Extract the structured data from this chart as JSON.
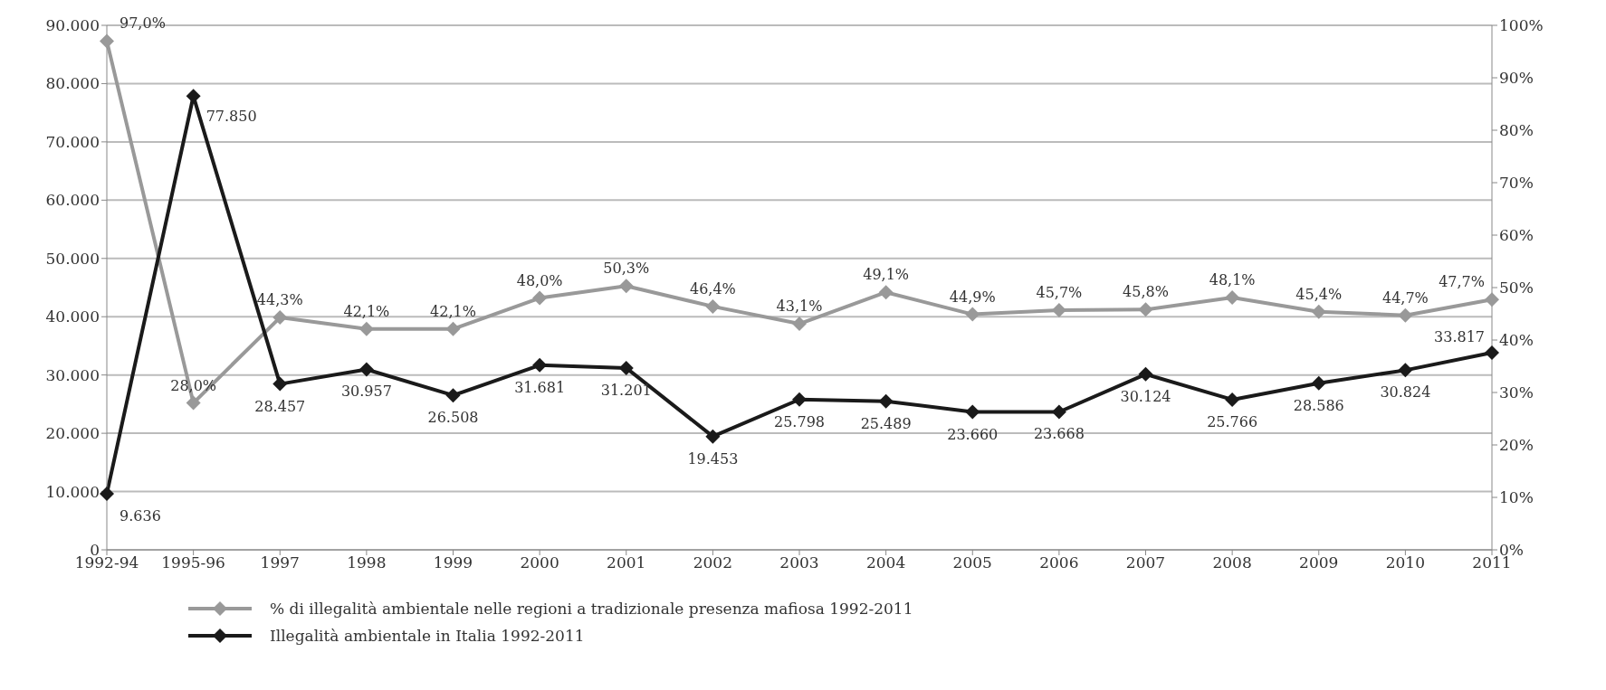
{
  "chart_data": {
    "type": "line",
    "categories": [
      "1992-94",
      "1995-96",
      "1997",
      "1998",
      "1999",
      "2000",
      "2001",
      "2002",
      "2003",
      "2004",
      "2005",
      "2006",
      "2007",
      "2008",
      "2009",
      "2010",
      "2011"
    ],
    "series": [
      {
        "name": "% di illegalità ambientale nelle regioni a tradizionale presenza mafiosa 1992-2011",
        "color": "#999999",
        "axis": "y2",
        "values": [
          97.0,
          28.0,
          44.3,
          42.1,
          42.1,
          48.0,
          50.3,
          46.4,
          43.1,
          49.1,
          44.9,
          45.7,
          45.8,
          48.1,
          45.4,
          44.7,
          47.7
        ],
        "value_labels": [
          "97,0%",
          "28,0%",
          "44,3%",
          "42,1%",
          "42,1%",
          "48,0%",
          "50,3%",
          "46,4%",
          "43,1%",
          "49,1%",
          "44,9%",
          "45,7%",
          "45,8%",
          "48,1%",
          "45,4%",
          "44,7%",
          "47,7%"
        ]
      },
      {
        "name": "Illegalità ambientale in Italia 1992-2011",
        "color": "#1a1a1a",
        "values": [
          9636,
          77850,
          28457,
          30957,
          26508,
          31681,
          31201,
          19453,
          25798,
          25489,
          23660,
          23668,
          30124,
          25766,
          28586,
          30824,
          33817
        ],
        "value_labels": [
          "9.636",
          "77.850",
          "28.457",
          "30.957",
          "26.508",
          "31.681",
          "31.201",
          "19.453",
          "25.798",
          "25.489",
          "23.660",
          "23.668",
          "30.124",
          "25.766",
          "28.586",
          "30.824",
          "33.817"
        ]
      }
    ],
    "ylim": [
      0,
      90000
    ],
    "yticks": [
      {
        "value": 0,
        "label": "0"
      },
      {
        "value": 10000,
        "label": "10.000"
      },
      {
        "value": 20000,
        "label": "20.000"
      },
      {
        "value": 30000,
        "label": "30.000"
      },
      {
        "value": 40000,
        "label": "40.000"
      },
      {
        "value": 50000,
        "label": "50.000"
      },
      {
        "value": 60000,
        "label": "60.000"
      },
      {
        "value": 70000,
        "label": "70.000"
      },
      {
        "value": 80000,
        "label": "80.000"
      },
      {
        "value": 90000,
        "label": "90.000"
      }
    ],
    "y2lim": [
      0,
      100
    ],
    "y2ticks": [
      {
        "value": 0,
        "label": "0%"
      },
      {
        "value": 10,
        "label": "10%"
      },
      {
        "value": 20,
        "label": "20%"
      },
      {
        "value": 30,
        "label": "30%"
      },
      {
        "value": 40,
        "label": "40%"
      },
      {
        "value": 50,
        "label": "50%"
      },
      {
        "value": 60,
        "label": "60%"
      },
      {
        "value": 70,
        "label": "70%"
      },
      {
        "value": 80,
        "label": "80%"
      },
      {
        "value": 90,
        "label": "90%"
      },
      {
        "value": 100,
        "label": "100%"
      }
    ],
    "grid": "y",
    "legend": "bottom",
    "marker": "diamond",
    "line_style": "solid"
  }
}
